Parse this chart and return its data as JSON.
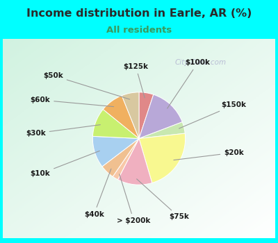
{
  "title": "Income distribution in Earle, AR (%)",
  "subtitle": "All residents",
  "title_color": "#2a2a2a",
  "subtitle_color": "#3a9a5c",
  "background_color": "#00ffff",
  "watermark": "City-Data.com",
  "labels": [
    "$125k",
    "$100k",
    "$150k",
    "$20k",
    "$75k",
    "> $200k",
    "$40k",
    "$10k",
    "$30k",
    "$60k",
    "$50k"
  ],
  "values": [
    5,
    14,
    4,
    22,
    12,
    2,
    5,
    11,
    10,
    8,
    6
  ],
  "colors": [
    "#e08888",
    "#b8a8d8",
    "#c8e8b0",
    "#f8f890",
    "#f0b0c0",
    "#f8c8a8",
    "#f0c090",
    "#a8d0f0",
    "#c8f070",
    "#f0b060",
    "#d8c8a0"
  ],
  "figsize": [
    4.0,
    3.5
  ],
  "dpi": 100
}
